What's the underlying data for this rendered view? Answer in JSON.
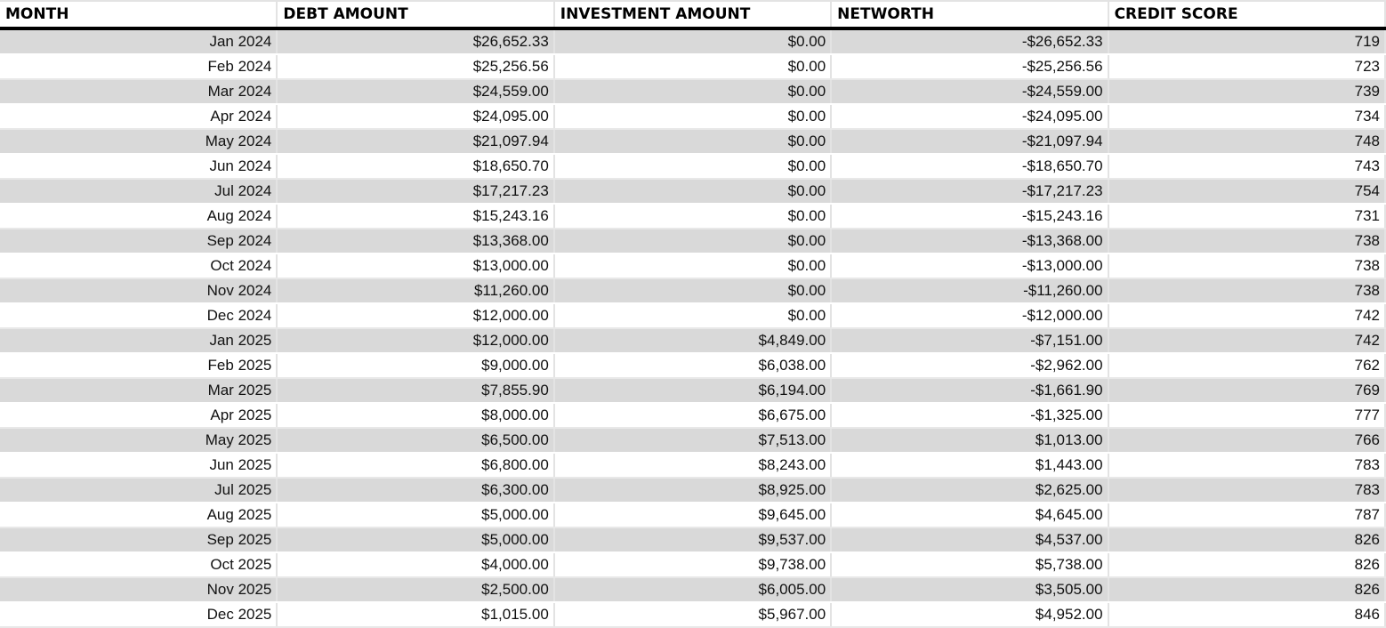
{
  "table": {
    "headers": [
      "MONTH",
      "DEBT AMOUNT",
      "INVESTMENT AMOUNT",
      "NETWORTH",
      "CREDIT SCORE"
    ],
    "rows": [
      [
        "Jan 2024",
        "$26,652.33",
        "$0.00",
        "-$26,652.33",
        "719"
      ],
      [
        "Feb 2024",
        "$25,256.56",
        "$0.00",
        "-$25,256.56",
        "723"
      ],
      [
        "Mar 2024",
        "$24,559.00",
        "$0.00",
        "-$24,559.00",
        "739"
      ],
      [
        "Apr 2024",
        "$24,095.00",
        "$0.00",
        "-$24,095.00",
        "734"
      ],
      [
        "May 2024",
        "$21,097.94",
        "$0.00",
        "-$21,097.94",
        "748"
      ],
      [
        "Jun 2024",
        "$18,650.70",
        "$0.00",
        "-$18,650.70",
        "743"
      ],
      [
        "Jul 2024",
        "$17,217.23",
        "$0.00",
        "-$17,217.23",
        "754"
      ],
      [
        "Aug 2024",
        "$15,243.16",
        "$0.00",
        "-$15,243.16",
        "731"
      ],
      [
        "Sep 2024",
        "$13,368.00",
        "$0.00",
        "-$13,368.00",
        "738"
      ],
      [
        "Oct 2024",
        "$13,000.00",
        "$0.00",
        "-$13,000.00",
        "738"
      ],
      [
        "Nov 2024",
        "$11,260.00",
        "$0.00",
        "-$11,260.00",
        "738"
      ],
      [
        "Dec 2024",
        "$12,000.00",
        "$0.00",
        "-$12,000.00",
        "742"
      ],
      [
        "Jan 2025",
        "$12,000.00",
        "$4,849.00",
        "-$7,151.00",
        "742"
      ],
      [
        "Feb 2025",
        "$9,000.00",
        "$6,038.00",
        "-$2,962.00",
        "762"
      ],
      [
        "Mar 2025",
        "$7,855.90",
        "$6,194.00",
        "-$1,661.90",
        "769"
      ],
      [
        "Apr 2025",
        "$8,000.00",
        "$6,675.00",
        "-$1,325.00",
        "777"
      ],
      [
        "May 2025",
        "$6,500.00",
        "$7,513.00",
        "$1,013.00",
        "766"
      ],
      [
        "Jun 2025",
        "$6,800.00",
        "$8,243.00",
        "$1,443.00",
        "783"
      ],
      [
        "Jul 2025",
        "$6,300.00",
        "$8,925.00",
        "$2,625.00",
        "783"
      ],
      [
        "Aug 2025",
        "$5,000.00",
        "$9,645.00",
        "$4,645.00",
        "787"
      ],
      [
        "Sep 2025",
        "$5,000.00",
        "$9,537.00",
        "$4,537.00",
        "826"
      ],
      [
        "Oct 2025",
        "$4,000.00",
        "$9,738.00",
        "$5,738.00",
        "826"
      ],
      [
        "Nov 2025",
        "$2,500.00",
        "$6,005.00",
        "$3,505.00",
        "826"
      ],
      [
        "Dec 2025",
        "$1,015.00",
        "$5,967.00",
        "$4,952.00",
        "846"
      ]
    ]
  },
  "colors": {
    "band": "#d9d9d9",
    "header_rule": "#000000"
  }
}
